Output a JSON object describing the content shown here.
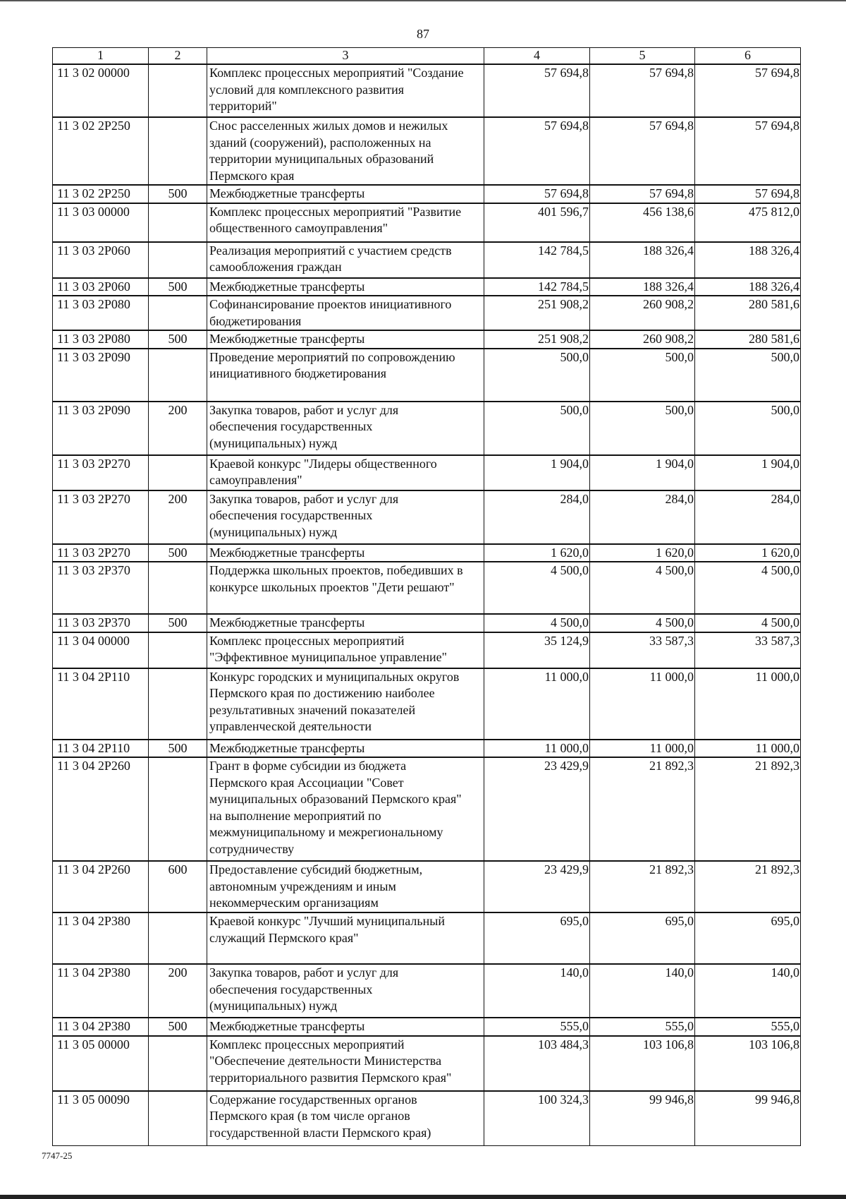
{
  "page_number": "87",
  "footer_code": "7747-25",
  "columns": [
    "1",
    "2",
    "3",
    "4",
    "5",
    "6"
  ],
  "rows": [
    {
      "code": "11 3 02 00000",
      "kind": "",
      "desc": "Комплекс процессных мероприятий \"Создание\nусловий для комплексного развития\nтерриторий\"",
      "v4": "57 694,8",
      "v5": "57 694,8",
      "v6": "57 694,8"
    },
    {
      "code": "11 3 02 2P250",
      "kind": "",
      "desc": "Снос расселенных жилых домов и нежилых\nзданий (сооружений), расположенных на\nтерритории муниципальных образований\nПермского края",
      "v4": "57 694,8",
      "v5": "57 694,8",
      "v6": "57 694,8"
    },
    {
      "code": "11 3 02 2P250",
      "kind": "500",
      "desc": "Межбюджетные трансферты",
      "v4": "57 694,8",
      "v5": "57 694,8",
      "v6": "57 694,8"
    },
    {
      "code": "11 3 03 00000",
      "kind": "",
      "desc": "Комплекс процессных мероприятий \"Развитие\nобщественного самоуправления\"",
      "v4": "401 596,7",
      "v5": "456 138,6",
      "v6": "475 812,0"
    },
    {
      "code": "11 3 03 2P060",
      "kind": "",
      "desc": "Реализация мероприятий с участием средств\nсамообложения граждан",
      "v4": "142 784,5",
      "v5": "188 326,4",
      "v6": "188 326,4"
    },
    {
      "code": "11 3 03 2P060",
      "kind": "500",
      "desc": "Межбюджетные трансферты",
      "v4": "142 784,5",
      "v5": "188 326,4",
      "v6": "188 326,4"
    },
    {
      "code": "11 3 03 2P080",
      "kind": "",
      "desc": "Софинансирование проектов инициативного\nбюджетирования",
      "v4": "251 908,2",
      "v5": "260 908,2",
      "v6": "280 581,6"
    },
    {
      "code": "11 3 03 2P080",
      "kind": "500",
      "desc": "Межбюджетные трансферты",
      "v4": "251 908,2",
      "v5": "260 908,2",
      "v6": "280 581,6"
    },
    {
      "code": "11 3 03 2P090",
      "kind": "",
      "desc": "Проведение мероприятий по сопровождению\nинициативного бюджетирования",
      "v4": "500,0",
      "v5": "500,0",
      "v6": "500,0"
    },
    {
      "code": "11 3 03 2P090",
      "kind": "200",
      "desc": "Закупка товаров, работ и услуг для\nобеспечения государственных\n(муниципальных) нужд",
      "v4": "500,0",
      "v5": "500,0",
      "v6": "500,0"
    },
    {
      "code": "11 3 03 2P270",
      "kind": "",
      "desc": "Краевой конкурс \"Лидеры общественного\nсамоуправления\"",
      "v4": "1 904,0",
      "v5": "1 904,0",
      "v6": "1 904,0"
    },
    {
      "code": "11 3 03 2P270",
      "kind": "200",
      "desc": "Закупка товаров, работ и услуг для\nобеспечения государственных\n(муниципальных) нужд",
      "v4": "284,0",
      "v5": "284,0",
      "v6": "284,0"
    },
    {
      "code": "11 3 03 2P270",
      "kind": "500",
      "desc": "Межбюджетные трансферты",
      "v4": "1 620,0",
      "v5": "1 620,0",
      "v6": "1 620,0"
    },
    {
      "code": "11 3 03 2P370",
      "kind": "",
      "desc": "Поддержка школьных проектов, победивших в\nконкурсе школьных проектов \"Дети решают\"",
      "v4": "4 500,0",
      "v5": "4 500,0",
      "v6": "4 500,0"
    },
    {
      "code": "11 3 03 2P370",
      "kind": "500",
      "desc": "Межбюджетные трансферты",
      "v4": "4 500,0",
      "v5": "4 500,0",
      "v6": "4 500,0"
    },
    {
      "code": "11 3 04 00000",
      "kind": "",
      "desc": "Комплекс процессных мероприятий\n\"Эффективное муниципальное управление\"",
      "v4": "35 124,9",
      "v5": "33 587,3",
      "v6": "33 587,3"
    },
    {
      "code": "11 3 04 2P110",
      "kind": "",
      "desc": "Конкурс городских и муниципальных округов\nПермского края по достижению наиболее\nрезультативных значений показателей\nуправленческой деятельности",
      "v4": "11 000,0",
      "v5": "11 000,0",
      "v6": "11 000,0"
    },
    {
      "code": "11 3 04 2P110",
      "kind": "500",
      "desc": "Межбюджетные трансферты",
      "v4": "11 000,0",
      "v5": "11 000,0",
      "v6": "11 000,0"
    },
    {
      "code": "11 3 04 2P260",
      "kind": "",
      "desc": "Грант в форме субсидии из бюджета\nПермского края Ассоциации \"Совет\nмуниципальных образований Пермского края\"\nна выполнение мероприятий по\nмежмуниципальному и межрегиональному\nсотрудничеству",
      "v4": "23 429,9",
      "v5": "21 892,3",
      "v6": "21 892,3"
    },
    {
      "code": "11 3 04 2P260",
      "kind": "600",
      "desc": "Предоставление субсидий бюджетным,\nавтономным учреждениям и иным\nнекоммерческим организациям",
      "v4": "23 429,9",
      "v5": "21 892,3",
      "v6": "21 892,3"
    },
    {
      "code": "11 3 04 2P380",
      "kind": "",
      "desc": "Краевой конкурс \"Лучший муниципальный\nслужащий Пермского края\"",
      "v4": "695,0",
      "v5": "695,0",
      "v6": "695,0"
    },
    {
      "code": "11 3 04 2P380",
      "kind": "200",
      "desc": "Закупка товаров, работ и услуг для\nобеспечения государственных\n(муниципальных) нужд",
      "v4": "140,0",
      "v5": "140,0",
      "v6": "140,0"
    },
    {
      "code": "11 3 04 2P380",
      "kind": "500",
      "desc": "Межбюджетные трансферты",
      "v4": "555,0",
      "v5": "555,0",
      "v6": "555,0"
    },
    {
      "code": "11 3 05 00000",
      "kind": "",
      "desc": "Комплекс процессных мероприятий\n\"Обеспечение деятельности Министерства\nтерриториального развития Пермского края\"",
      "v4": "103 484,3",
      "v5": "103 106,8",
      "v6": "103 106,8"
    },
    {
      "code": "11 3 05 00090",
      "kind": "",
      "desc": "Содержание государственных органов\nПермского края (в том числе органов\nгосударственной власти Пермского края)",
      "v4": "100 324,3",
      "v5": "99 946,8",
      "v6": "99 946,8"
    }
  ]
}
